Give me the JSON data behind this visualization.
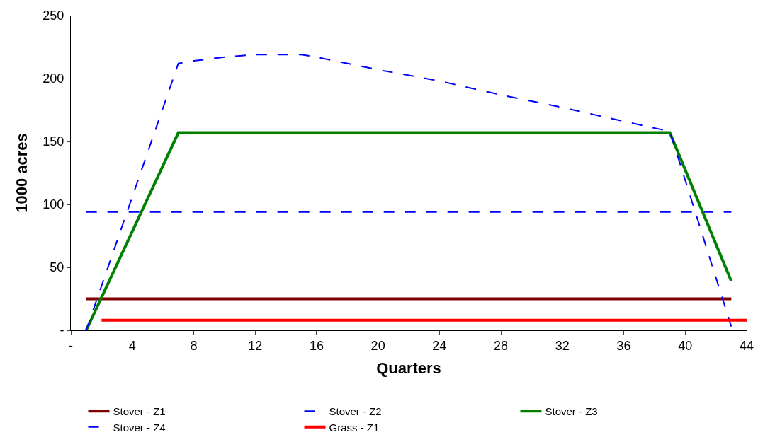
{
  "chart_data": {
    "type": "line",
    "xlabel": "Quarters",
    "ylabel": "1000 acres",
    "xlim": [
      0,
      44
    ],
    "xticks": [
      {
        "value": 0,
        "label": "-"
      },
      4,
      8,
      12,
      16,
      20,
      24,
      28,
      32,
      36,
      40,
      44
    ],
    "ylim": [
      0,
      250
    ],
    "yticks": [
      {
        "value": 0,
        "label": "-"
      },
      50,
      100,
      150,
      200,
      250
    ],
    "legend": "bottom",
    "series": [
      {
        "name": "Stover - Z1",
        "color": "#800000",
        "line_style": "solid",
        "x": [
          1,
          43
        ],
        "values": [
          25,
          25
        ]
      },
      {
        "name": "Stover - Z2",
        "color": "#0000ff",
        "line_style": "dashed",
        "x": [
          1,
          43
        ],
        "values": [
          94,
          94
        ]
      },
      {
        "name": "Stover - Z3",
        "color": "#008000",
        "line_style": "solid",
        "x": [
          1,
          7,
          39,
          43
        ],
        "values": [
          0,
          157,
          157,
          39
        ]
      },
      {
        "name": "Stover - Z4",
        "color": "#0000ff",
        "line_style": "dashed",
        "x": [
          1,
          7,
          8,
          10,
          12,
          15,
          16,
          20,
          24,
          28,
          32,
          36,
          39,
          43
        ],
        "values": [
          0,
          212,
          214,
          217,
          219,
          219,
          217,
          207,
          198,
          187,
          177,
          166,
          158,
          3
        ]
      },
      {
        "name": "Grass - Z1",
        "color": "#ff0000",
        "line_style": "solid",
        "x": [
          2,
          44
        ],
        "values": [
          8,
          8
        ]
      }
    ]
  }
}
